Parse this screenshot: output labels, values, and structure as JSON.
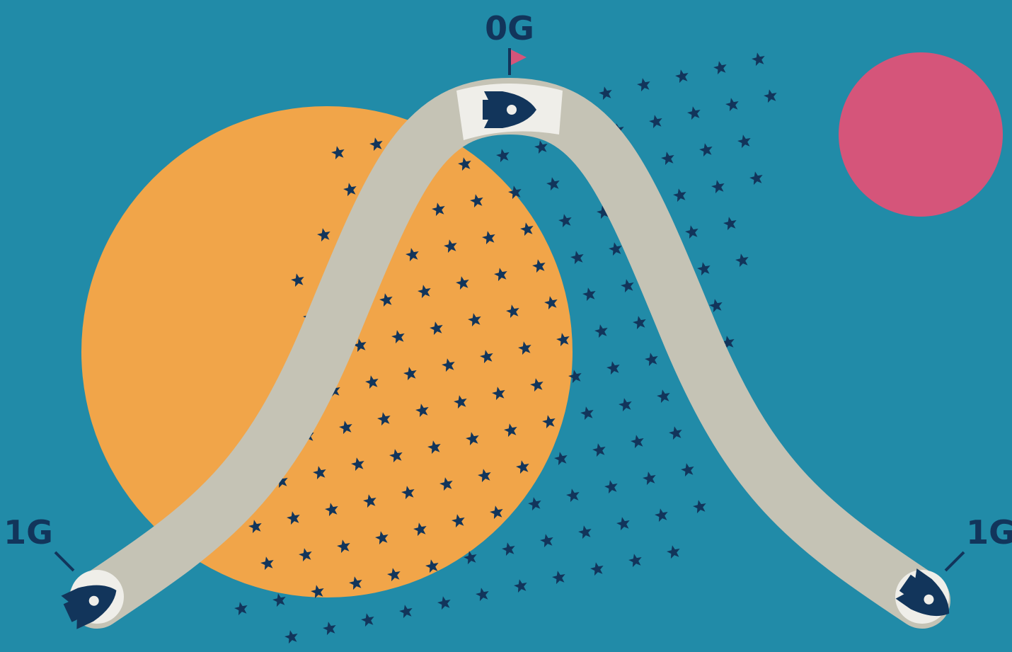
{
  "labels": {
    "top": "0G",
    "left": "1G",
    "right": "1G"
  }
}
